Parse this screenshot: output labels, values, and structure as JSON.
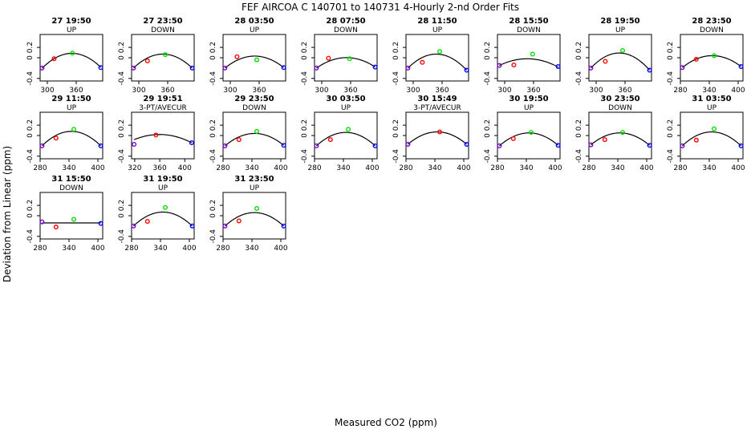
{
  "figure": {
    "title": "FEF   AIRCOA C   140701 to 140731   4-Hourly 2-nd Order Fits",
    "xlabel": "Measured CO2 (ppm)",
    "ylabel": "Deviation from Linear (ppm)"
  },
  "chart_data": {
    "type": "scatter",
    "title": "FEF   AIRCOA C   140701 to 140731   4-Hourly 2-nd Order Fits",
    "xlabel": "Measured CO2 (ppm)",
    "ylabel": "Deviation from Linear (ppm)",
    "ylim": [
      -0.45,
      0.45
    ],
    "y_ticks": [
      -0.4,
      0,
      0.2
    ],
    "y_tick_labels": [
      "-0.4",
      "0",
      "0.2"
    ],
    "point_colors": [
      "#7a00c8",
      "#ff0000",
      "#00dd00",
      "#0000ff"
    ],
    "fit_line_color": "#000000",
    "panels": [
      {
        "title": "27 19:50",
        "subtitle": "UP",
        "xlim": [
          285,
          415
        ],
        "x_ticks": [
          300,
          360
        ],
        "x_tick_labels": [
          "300",
          "360"
        ],
        "points": [
          {
            "x": 289,
            "y": -0.2
          },
          {
            "x": 314,
            "y": -0.02
          },
          {
            "x": 352,
            "y": 0.09
          },
          {
            "x": 411,
            "y": -0.19
          }
        ],
        "fit": [
          [
            289,
            -0.205
          ],
          [
            350,
            0.085
          ],
          [
            411,
            -0.185
          ]
        ]
      },
      {
        "title": "27 23:50",
        "subtitle": "DOWN",
        "xlim": [
          285,
          415
        ],
        "x_ticks": [
          300,
          360
        ],
        "x_tick_labels": [
          "300",
          "360"
        ],
        "points": [
          {
            "x": 289,
            "y": -0.2
          },
          {
            "x": 318,
            "y": -0.06
          },
          {
            "x": 355,
            "y": 0.06
          },
          {
            "x": 411,
            "y": -0.2
          }
        ],
        "fit": [
          [
            289,
            -0.2
          ],
          [
            352,
            0.07
          ],
          [
            411,
            -0.2
          ]
        ]
      },
      {
        "title": "28 03:50",
        "subtitle": "UP",
        "xlim": [
          285,
          415
        ],
        "x_ticks": [
          300,
          360
        ],
        "x_tick_labels": [
          "300",
          "360"
        ],
        "points": [
          {
            "x": 289,
            "y": -0.2
          },
          {
            "x": 314,
            "y": 0.02
          },
          {
            "x": 355,
            "y": -0.04
          },
          {
            "x": 411,
            "y": -0.19
          }
        ],
        "fit": [
          [
            289,
            -0.2
          ],
          [
            345,
            0.03
          ],
          [
            411,
            -0.19
          ]
        ]
      },
      {
        "title": "28 07:50",
        "subtitle": "DOWN",
        "xlim": [
          285,
          415
        ],
        "x_ticks": [
          300,
          360
        ],
        "x_tick_labels": [
          "300",
          "360"
        ],
        "points": [
          {
            "x": 289,
            "y": -0.2
          },
          {
            "x": 314,
            "y": -0.01
          },
          {
            "x": 358,
            "y": -0.02
          },
          {
            "x": 411,
            "y": -0.18
          }
        ],
        "fit": [
          [
            289,
            -0.2
          ],
          [
            345,
            0.0
          ],
          [
            411,
            -0.18
          ]
        ]
      },
      {
        "title": "28 11:50",
        "subtitle": "UP",
        "xlim": [
          285,
          415
        ],
        "x_ticks": [
          300,
          360
        ],
        "x_tick_labels": [
          "300",
          "360"
        ],
        "points": [
          {
            "x": 289,
            "y": -0.2
          },
          {
            "x": 319,
            "y": -0.09
          },
          {
            "x": 355,
            "y": 0.12
          },
          {
            "x": 411,
            "y": -0.24
          }
        ],
        "fit": [
          [
            289,
            -0.2
          ],
          [
            350,
            0.07
          ],
          [
            411,
            -0.24
          ]
        ]
      },
      {
        "title": "28 15:50",
        "subtitle": "DOWN",
        "xlim": [
          285,
          415
        ],
        "x_ticks": [
          300,
          360
        ],
        "x_tick_labels": [
          "300",
          "360"
        ],
        "points": [
          {
            "x": 289,
            "y": -0.15
          },
          {
            "x": 319,
            "y": -0.14
          },
          {
            "x": 358,
            "y": 0.07
          },
          {
            "x": 411,
            "y": -0.17
          }
        ],
        "fit": [
          [
            289,
            -0.15
          ],
          [
            350,
            -0.02
          ],
          [
            411,
            -0.18
          ]
        ]
      },
      {
        "title": "28 19:50",
        "subtitle": "UP",
        "xlim": [
          285,
          415
        ],
        "x_ticks": [
          300,
          360
        ],
        "x_tick_labels": [
          "300",
          "360"
        ],
        "points": [
          {
            "x": 289,
            "y": -0.2
          },
          {
            "x": 319,
            "y": -0.07
          },
          {
            "x": 355,
            "y": 0.14
          },
          {
            "x": 411,
            "y": -0.24
          }
        ],
        "fit": [
          [
            289,
            -0.2
          ],
          [
            352,
            0.09
          ],
          [
            411,
            -0.24
          ]
        ]
      },
      {
        "title": "28 23:50",
        "subtitle": "DOWN",
        "xlim": [
          280,
          410
        ],
        "x_ticks": [
          280,
          340,
          400
        ],
        "x_tick_labels": [
          "280",
          "340",
          "400"
        ],
        "points": [
          {
            "x": 284,
            "y": -0.19
          },
          {
            "x": 313,
            "y": -0.03
          },
          {
            "x": 350,
            "y": 0.04
          },
          {
            "x": 406,
            "y": -0.17
          }
        ],
        "fit": [
          [
            284,
            -0.19
          ],
          [
            345,
            0.04
          ],
          [
            406,
            -0.17
          ]
        ]
      },
      {
        "title": "29 11:50",
        "subtitle": "UP",
        "xlim": [
          280,
          410
        ],
        "x_ticks": [
          280,
          340,
          400
        ],
        "x_tick_labels": [
          "280",
          "340",
          "400"
        ],
        "points": [
          {
            "x": 284,
            "y": -0.2
          },
          {
            "x": 313,
            "y": -0.05
          },
          {
            "x": 350,
            "y": 0.12
          },
          {
            "x": 406,
            "y": -0.2
          }
        ],
        "fit": [
          [
            284,
            -0.2
          ],
          [
            345,
            0.08
          ],
          [
            406,
            -0.2
          ]
        ]
      },
      {
        "title": "29 19:51",
        "subtitle": "3-PT/AVECUR",
        "xlim": [
          315,
          415
        ],
        "x_ticks": [
          320,
          360,
          400
        ],
        "x_tick_labels": [
          "320",
          "360",
          "400"
        ],
        "points": [
          {
            "x": 319,
            "y": -0.17
          },
          {
            "x": 354,
            "y": 0.01
          },
          {
            "x": 411,
            "y": -0.14
          }
        ],
        "fit": [
          [
            319,
            -0.08
          ],
          [
            360,
            0.02
          ],
          [
            411,
            -0.14
          ]
        ]
      },
      {
        "title": "29 23:50",
        "subtitle": "DOWN",
        "xlim": [
          280,
          410
        ],
        "x_ticks": [
          280,
          340,
          400
        ],
        "x_tick_labels": [
          "280",
          "340",
          "400"
        ],
        "points": [
          {
            "x": 284,
            "y": -0.2
          },
          {
            "x": 313,
            "y": -0.08
          },
          {
            "x": 350,
            "y": 0.08
          },
          {
            "x": 406,
            "y": -0.19
          }
        ],
        "fit": [
          [
            284,
            -0.2
          ],
          [
            345,
            0.04
          ],
          [
            406,
            -0.19
          ]
        ]
      },
      {
        "title": "30 03:50",
        "subtitle": "UP",
        "xlim": [
          280,
          410
        ],
        "x_ticks": [
          280,
          340,
          400
        ],
        "x_tick_labels": [
          "280",
          "340",
          "400"
        ],
        "points": [
          {
            "x": 284,
            "y": -0.2
          },
          {
            "x": 313,
            "y": -0.08
          },
          {
            "x": 350,
            "y": 0.12
          },
          {
            "x": 406,
            "y": -0.2
          }
        ],
        "fit": [
          [
            284,
            -0.2
          ],
          [
            345,
            0.06
          ],
          [
            406,
            -0.2
          ]
        ]
      },
      {
        "title": "30 15:49",
        "subtitle": "3-PT/AVECUR",
        "xlim": [
          280,
          410
        ],
        "x_ticks": [
          280,
          340,
          400
        ],
        "x_tick_labels": [
          "280",
          "340",
          "400"
        ],
        "points": [
          {
            "x": 284,
            "y": -0.17
          },
          {
            "x": 350,
            "y": 0.07
          },
          {
            "x": 406,
            "y": -0.17
          }
        ],
        "fit": [
          [
            284,
            -0.17
          ],
          [
            345,
            0.07
          ],
          [
            406,
            -0.17
          ]
        ]
      },
      {
        "title": "30 19:50",
        "subtitle": "UP",
        "xlim": [
          280,
          410
        ],
        "x_ticks": [
          280,
          340,
          400
        ],
        "x_tick_labels": [
          "280",
          "340",
          "400"
        ],
        "points": [
          {
            "x": 284,
            "y": -0.2
          },
          {
            "x": 313,
            "y": -0.06
          },
          {
            "x": 350,
            "y": 0.06
          },
          {
            "x": 406,
            "y": -0.19
          }
        ],
        "fit": [
          [
            284,
            -0.2
          ],
          [
            345,
            0.05
          ],
          [
            406,
            -0.19
          ]
        ]
      },
      {
        "title": "30 23:50",
        "subtitle": "DOWN",
        "xlim": [
          280,
          410
        ],
        "x_ticks": [
          280,
          340,
          400
        ],
        "x_tick_labels": [
          "280",
          "340",
          "400"
        ],
        "points": [
          {
            "x": 284,
            "y": -0.18
          },
          {
            "x": 313,
            "y": -0.08
          },
          {
            "x": 350,
            "y": 0.06
          },
          {
            "x": 406,
            "y": -0.19
          }
        ],
        "fit": [
          [
            284,
            -0.18
          ],
          [
            345,
            0.05
          ],
          [
            406,
            -0.19
          ]
        ]
      },
      {
        "title": "31 03:50",
        "subtitle": "UP",
        "xlim": [
          280,
          410
        ],
        "x_ticks": [
          280,
          340,
          400
        ],
        "x_tick_labels": [
          "280",
          "340",
          "400"
        ],
        "points": [
          {
            "x": 284,
            "y": -0.2
          },
          {
            "x": 313,
            "y": -0.09
          },
          {
            "x": 350,
            "y": 0.13
          },
          {
            "x": 406,
            "y": -0.2
          }
        ],
        "fit": [
          [
            284,
            -0.2
          ],
          [
            345,
            0.07
          ],
          [
            406,
            -0.2
          ]
        ]
      },
      {
        "title": "31 15:50",
        "subtitle": "DOWN",
        "xlim": [
          280,
          410
        ],
        "x_ticks": [
          280,
          340,
          400
        ],
        "x_tick_labels": [
          "280",
          "340",
          "400"
        ],
        "points": [
          {
            "x": 284,
            "y": -0.12
          },
          {
            "x": 313,
            "y": -0.22
          },
          {
            "x": 350,
            "y": -0.07
          },
          {
            "x": 406,
            "y": -0.15
          }
        ],
        "fit": [
          [
            284,
            -0.14
          ],
          [
            345,
            -0.14
          ],
          [
            406,
            -0.14
          ]
        ]
      },
      {
        "title": "31 19:50",
        "subtitle": "UP",
        "xlim": [
          280,
          410
        ],
        "x_ticks": [
          280,
          340,
          400
        ],
        "x_tick_labels": [
          "280",
          "340",
          "400"
        ],
        "points": [
          {
            "x": 284,
            "y": -0.2
          },
          {
            "x": 313,
            "y": -0.11
          },
          {
            "x": 350,
            "y": 0.16
          },
          {
            "x": 406,
            "y": -0.2
          }
        ],
        "fit": [
          [
            284,
            -0.2
          ],
          [
            345,
            0.07
          ],
          [
            406,
            -0.2
          ]
        ]
      },
      {
        "title": "31 23:50",
        "subtitle": "UP",
        "xlim": [
          280,
          410
        ],
        "x_ticks": [
          280,
          340,
          400
        ],
        "x_tick_labels": [
          "280",
          "340",
          "400"
        ],
        "points": [
          {
            "x": 284,
            "y": -0.2
          },
          {
            "x": 313,
            "y": -0.1
          },
          {
            "x": 350,
            "y": 0.14
          },
          {
            "x": 406,
            "y": -0.2
          }
        ],
        "fit": [
          [
            284,
            -0.2
          ],
          [
            345,
            0.06
          ],
          [
            406,
            -0.2
          ]
        ]
      }
    ]
  }
}
